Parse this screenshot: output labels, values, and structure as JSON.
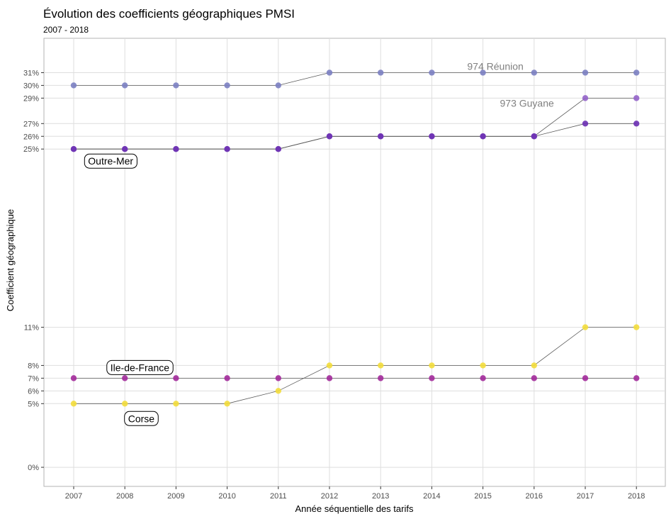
{
  "chart_data": {
    "type": "line",
    "title": "Évolution des coefficients géographiques PMSI",
    "subtitle": "2007 - 2018",
    "xlabel": "Année séquentielle des tarifs",
    "ylabel": "Coefficient géographique",
    "x": [
      "2007",
      "2008",
      "2009",
      "2010",
      "2011",
      "2012",
      "2013",
      "2014",
      "2015",
      "2016",
      "2017",
      "2018"
    ],
    "y_ticks": [
      {
        "value": 0,
        "label": "0%"
      },
      {
        "value": 5,
        "label": "5%"
      },
      {
        "value": 6,
        "label": "6%"
      },
      {
        "value": 7,
        "label": "7%"
      },
      {
        "value": 8,
        "label": "8%"
      },
      {
        "value": 11,
        "label": "11%"
      },
      {
        "value": 25,
        "label": "25%"
      },
      {
        "value": 26,
        "label": "26%"
      },
      {
        "value": 27,
        "label": "27%"
      },
      {
        "value": 29,
        "label": "29%"
      },
      {
        "value": 30,
        "label": "30%"
      },
      {
        "value": 31,
        "label": "31%"
      }
    ],
    "ylim": [
      -1.5,
      33.7
    ],
    "grid": true,
    "series": [
      {
        "key": "reunion",
        "name": "974 Réunion",
        "color": "#7b7fc2",
        "values": [
          30,
          30,
          30,
          30,
          30,
          31,
          31,
          31,
          31,
          31,
          31,
          31
        ]
      },
      {
        "key": "guyane",
        "name": "973 Guyane",
        "color": "#9463c9",
        "values": [
          25,
          25,
          25,
          25,
          25,
          26,
          26,
          26,
          26,
          26,
          29,
          29
        ]
      },
      {
        "key": "outremer",
        "name": "Outre-Mer",
        "color": "#6a2fb3",
        "values": [
          25,
          25,
          25,
          25,
          25,
          26,
          26,
          26,
          26,
          26,
          27,
          27
        ]
      },
      {
        "key": "iledefrance",
        "name": "Ile-de-France",
        "color": "#a2299a",
        "values": [
          7,
          7,
          7,
          7,
          7,
          7,
          7,
          7,
          7,
          7,
          7,
          7
        ]
      },
      {
        "key": "corse",
        "name": "Corse",
        "color": "#f3dd3b",
        "values": [
          5,
          5,
          5,
          5,
          6,
          8,
          8,
          8,
          8,
          8,
          11,
          11
        ]
      }
    ],
    "annotations": [
      {
        "series": "reunion",
        "text": "974 Réunion",
        "style": "plain",
        "x": "2016",
        "y": 31
      },
      {
        "series": "guyane",
        "text": "973 Guyane",
        "style": "plain",
        "x": "2016",
        "y": 29
      },
      {
        "series": "outremer",
        "text": "Outre-Mer",
        "style": "boxed",
        "x": "2008",
        "y": 25
      },
      {
        "series": "iledefrance",
        "text": "Ile-de-France",
        "style": "boxed",
        "x": "2009",
        "y": 7
      },
      {
        "series": "corse",
        "text": "Corse",
        "style": "boxed",
        "x": "2009",
        "y": 5
      }
    ]
  }
}
